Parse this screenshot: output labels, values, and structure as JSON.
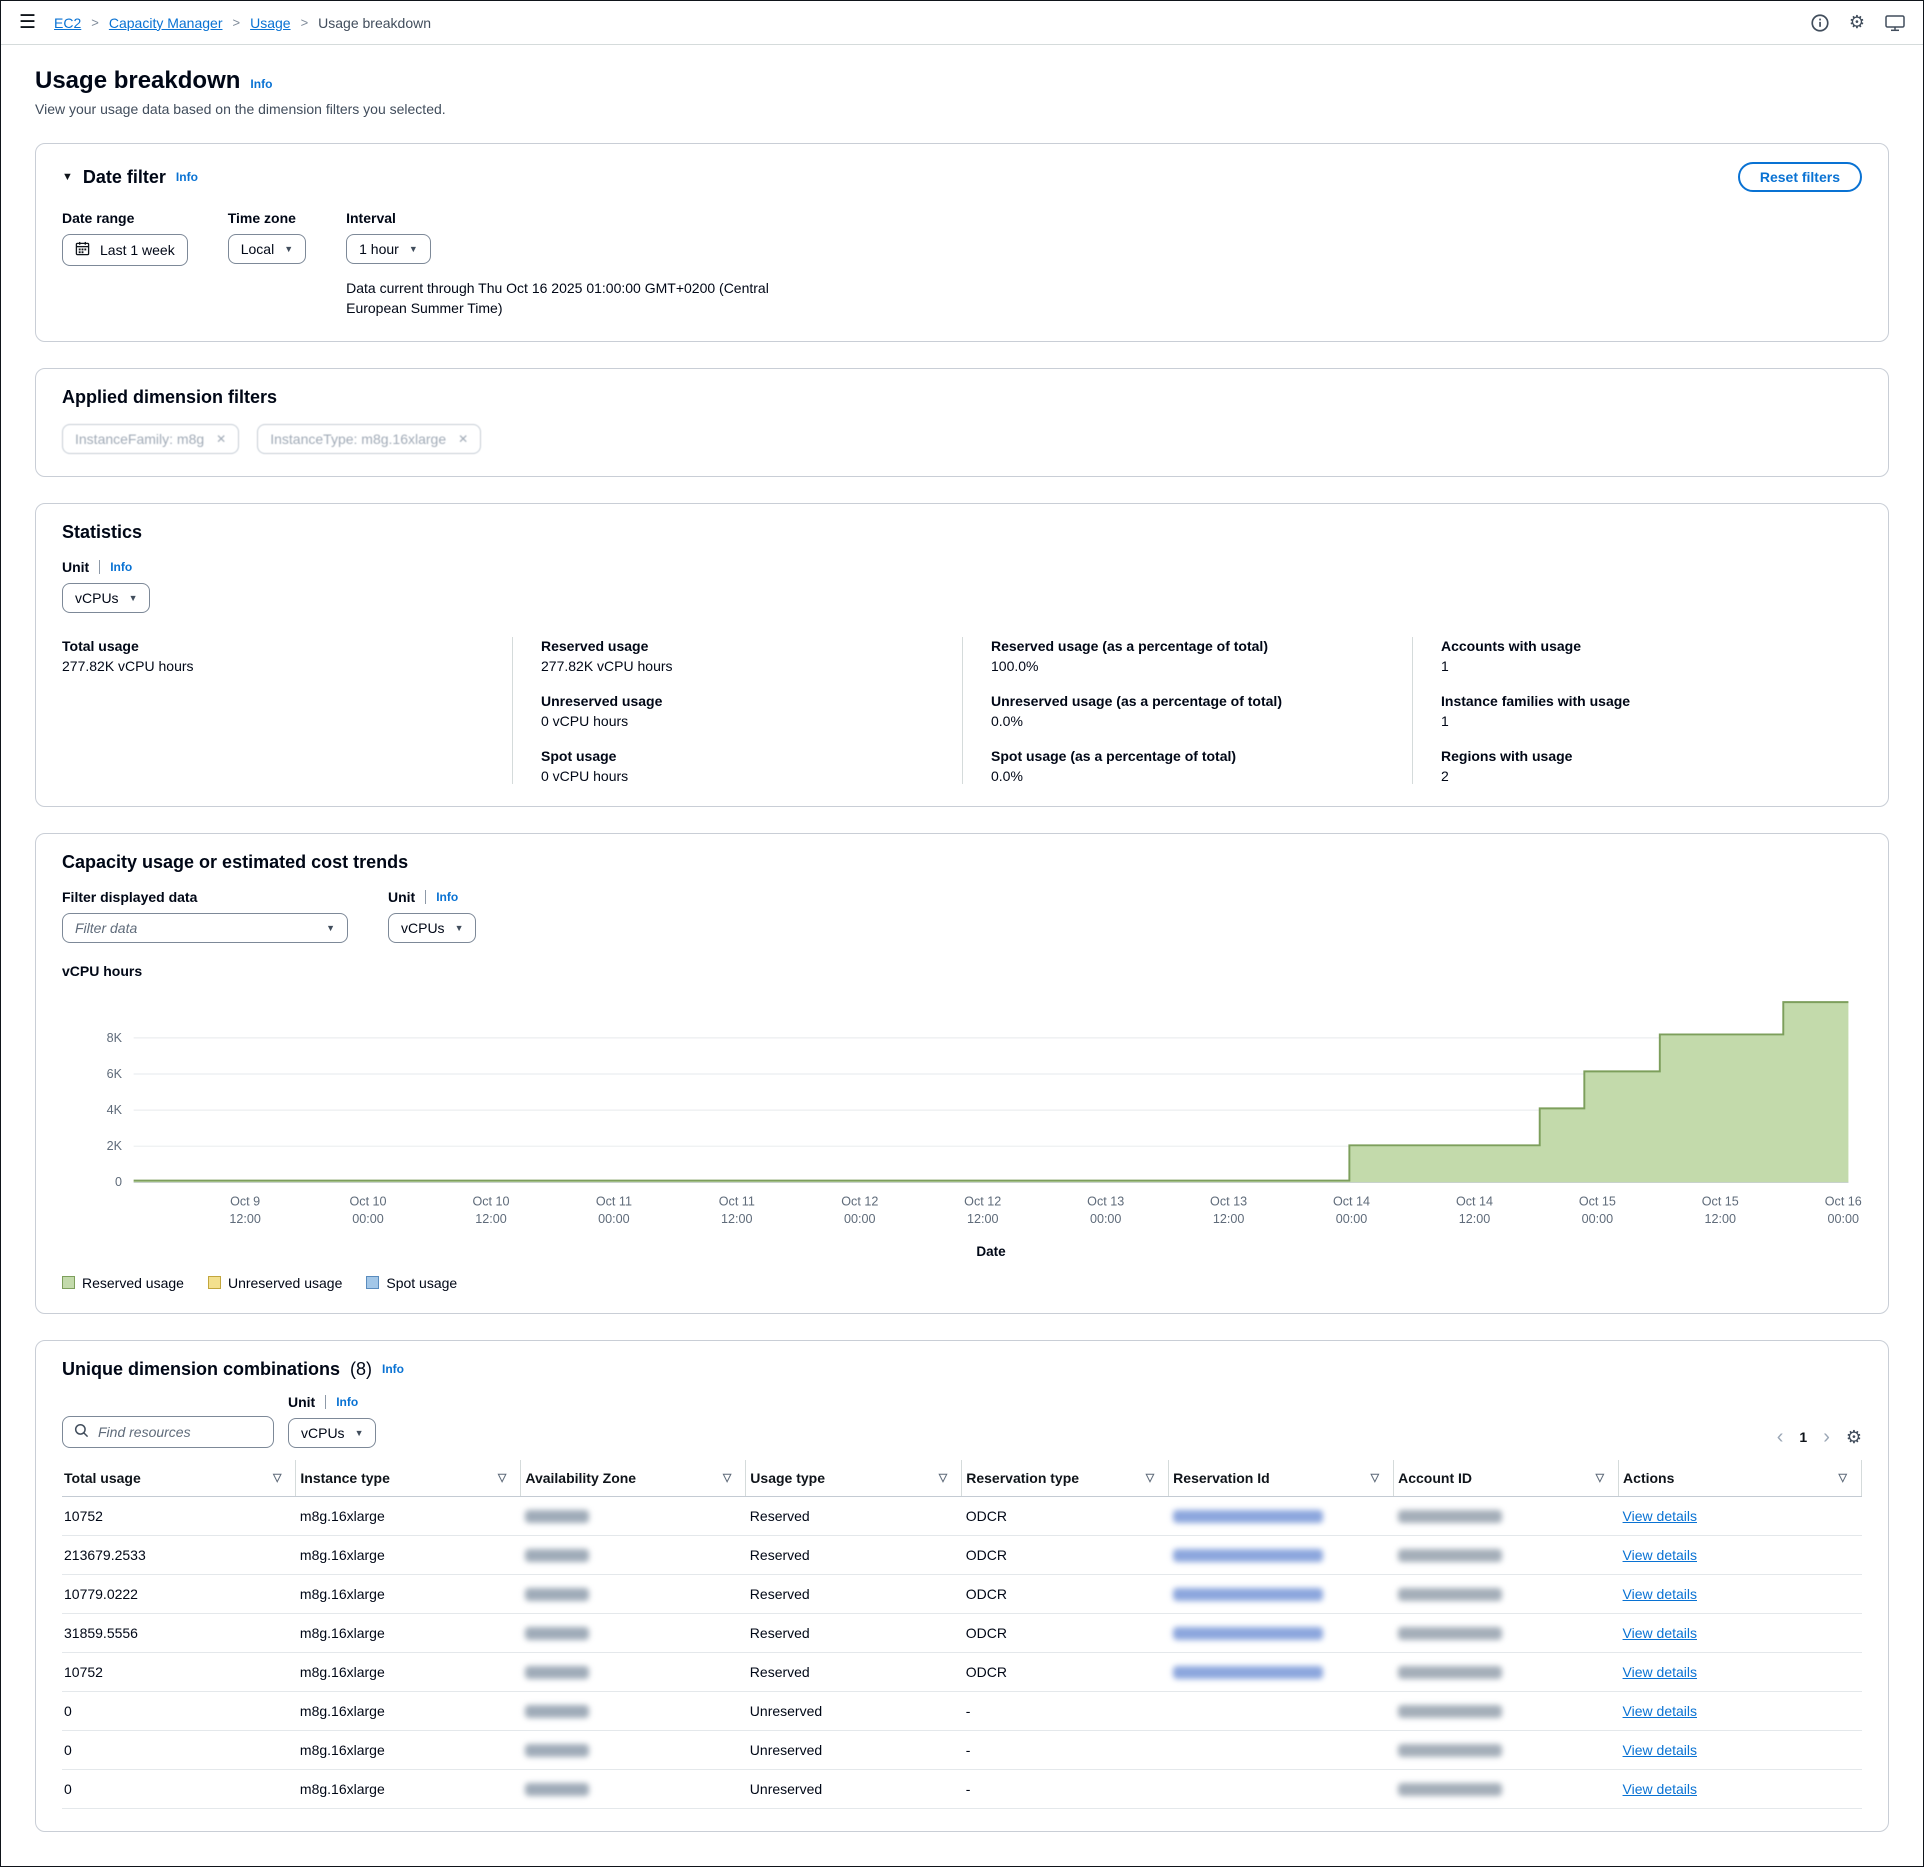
{
  "topbar": {
    "breadcrumbs": [
      {
        "label": "EC2",
        "link": true
      },
      {
        "label": "Capacity Manager",
        "link": true
      },
      {
        "label": "Usage",
        "link": true
      },
      {
        "label": "Usage breakdown",
        "link": false
      }
    ]
  },
  "page": {
    "title": "Usage breakdown",
    "info": "Info",
    "subtitle": "View your usage data based on the dimension filters you selected."
  },
  "date_filter": {
    "title": "Date filter",
    "info": "Info",
    "reset_button": "Reset filters",
    "date_range_label": "Date range",
    "date_range_value": "Last 1 week",
    "time_zone_label": "Time zone",
    "time_zone_value": "Local",
    "interval_label": "Interval",
    "interval_value": "1 hour",
    "data_current": "Data current through Thu Oct 16 2025 01:00:00 GMT+0200 (Central European Summer Time)"
  },
  "applied_filters": {
    "title": "Applied dimension filters",
    "tokens": [
      "InstanceFamily: m8g",
      "InstanceType: m8g.16xlarge"
    ]
  },
  "statistics": {
    "title": "Statistics",
    "unit_label": "Unit",
    "info": "Info",
    "unit_value": "vCPUs",
    "columns": [
      {
        "items": [
          {
            "label": "Total usage",
            "value": "277.82K vCPU hours"
          }
        ]
      },
      {
        "items": [
          {
            "label": "Reserved usage",
            "value": "277.82K vCPU hours"
          },
          {
            "label": "Unreserved usage",
            "value": "0 vCPU hours"
          },
          {
            "label": "Spot usage",
            "value": "0 vCPU hours"
          }
        ]
      },
      {
        "items": [
          {
            "label": "Reserved usage (as a percentage of total)",
            "value": "100.0%"
          },
          {
            "label": "Unreserved usage (as a percentage of total)",
            "value": "0.0%"
          },
          {
            "label": "Spot usage (as a percentage of total)",
            "value": "0.0%"
          }
        ]
      },
      {
        "items": [
          {
            "label": "Accounts with usage",
            "value": "1"
          },
          {
            "label": "Instance families with usage",
            "value": "1"
          },
          {
            "label": "Regions with usage",
            "value": "2"
          }
        ]
      }
    ]
  },
  "trends": {
    "title": "Capacity usage or estimated cost trends",
    "filter_label": "Filter displayed data",
    "filter_placeholder": "Filter data",
    "unit_label": "Unit",
    "info": "Info",
    "unit_value": "vCPUs",
    "chart_data": {
      "type": "area",
      "ylabel": "vCPU hours",
      "xlabel": "Date",
      "ylim": [
        0,
        10400
      ],
      "grid": [
        {
          "v": 0,
          "label": "0"
        },
        {
          "v": 2000,
          "label": "2K"
        },
        {
          "v": 4000,
          "label": "4K"
        },
        {
          "v": 6000,
          "label": "6K"
        },
        {
          "v": 8000,
          "label": "8K"
        }
      ],
      "x_ticks": [
        [
          "Oct 9",
          "12:00"
        ],
        [
          "Oct 10",
          "00:00"
        ],
        [
          "Oct 10",
          "12:00"
        ],
        [
          "Oct 11",
          "00:00"
        ],
        [
          "Oct 11",
          "12:00"
        ],
        [
          "Oct 12",
          "00:00"
        ],
        [
          "Oct 12",
          "12:00"
        ],
        [
          "Oct 13",
          "00:00"
        ],
        [
          "Oct 13",
          "12:00"
        ],
        [
          "Oct 14",
          "00:00"
        ],
        [
          "Oct 14",
          "12:00"
        ],
        [
          "Oct 15",
          "00:00"
        ],
        [
          "Oct 15",
          "12:00"
        ],
        [
          "Oct 16",
          "00:00"
        ]
      ],
      "series": [
        {
          "name": "Reserved usage",
          "fill": "#c3daab",
          "stroke": "#7d9f5c",
          "points": [
            [
              0,
              96
            ],
            [
              0.709,
              96
            ],
            [
              0.709,
              2048
            ],
            [
              0.82,
              2048
            ],
            [
              0.82,
              4096
            ],
            [
              0.846,
              4096
            ],
            [
              0.846,
              6144
            ],
            [
              0.89,
              6144
            ],
            [
              0.89,
              8192
            ],
            [
              0.962,
              8192
            ],
            [
              0.962,
              9984
            ],
            [
              1,
              9984
            ]
          ]
        },
        {
          "name": "Unreserved usage",
          "fill": "#f3e08e",
          "stroke": "#c2a63d",
          "points": [
            [
              0,
              0
            ],
            [
              1,
              0
            ]
          ]
        },
        {
          "name": "Spot usage",
          "fill": "#a3c7e8",
          "stroke": "#5a8cbe",
          "points": [
            [
              0,
              0
            ],
            [
              1,
              0
            ]
          ]
        }
      ]
    }
  },
  "combinations": {
    "title": "Unique dimension combinations",
    "count": "(8)",
    "info": "Info",
    "unit_label": "Unit",
    "unit_info": "Info",
    "unit_value": "vCPUs",
    "search_placeholder": "Find resources",
    "pagination": {
      "page": "1"
    },
    "table": {
      "columns": [
        "Total usage",
        "Instance type",
        "Availability Zone",
        "Usage type",
        "Reservation type",
        "Reservation Id",
        "Account ID",
        "Actions"
      ],
      "rows": [
        {
          "total_usage": "10752",
          "instance_type": "m8g.16xlarge",
          "usage_type": "Reserved",
          "reservation_type": "ODCR",
          "has_reservation_id": true,
          "actions": "View details"
        },
        {
          "total_usage": "213679.2533",
          "instance_type": "m8g.16xlarge",
          "usage_type": "Reserved",
          "reservation_type": "ODCR",
          "has_reservation_id": true,
          "actions": "View details"
        },
        {
          "total_usage": "10779.0222",
          "instance_type": "m8g.16xlarge",
          "usage_type": "Reserved",
          "reservation_type": "ODCR",
          "has_reservation_id": true,
          "actions": "View details"
        },
        {
          "total_usage": "31859.5556",
          "instance_type": "m8g.16xlarge",
          "usage_type": "Reserved",
          "reservation_type": "ODCR",
          "has_reservation_id": true,
          "actions": "View details"
        },
        {
          "total_usage": "10752",
          "instance_type": "m8g.16xlarge",
          "usage_type": "Reserved",
          "reservation_type": "ODCR",
          "has_reservation_id": true,
          "actions": "View details"
        },
        {
          "total_usage": "0",
          "instance_type": "m8g.16xlarge",
          "usage_type": "Unreserved",
          "reservation_type": "-",
          "has_reservation_id": false,
          "actions": "View details"
        },
        {
          "total_usage": "0",
          "instance_type": "m8g.16xlarge",
          "usage_type": "Unreserved",
          "reservation_type": "-",
          "has_reservation_id": false,
          "actions": "View details"
        },
        {
          "total_usage": "0",
          "instance_type": "m8g.16xlarge",
          "usage_type": "Unreserved",
          "reservation_type": "-",
          "has_reservation_id": false,
          "actions": "View details"
        }
      ]
    }
  }
}
